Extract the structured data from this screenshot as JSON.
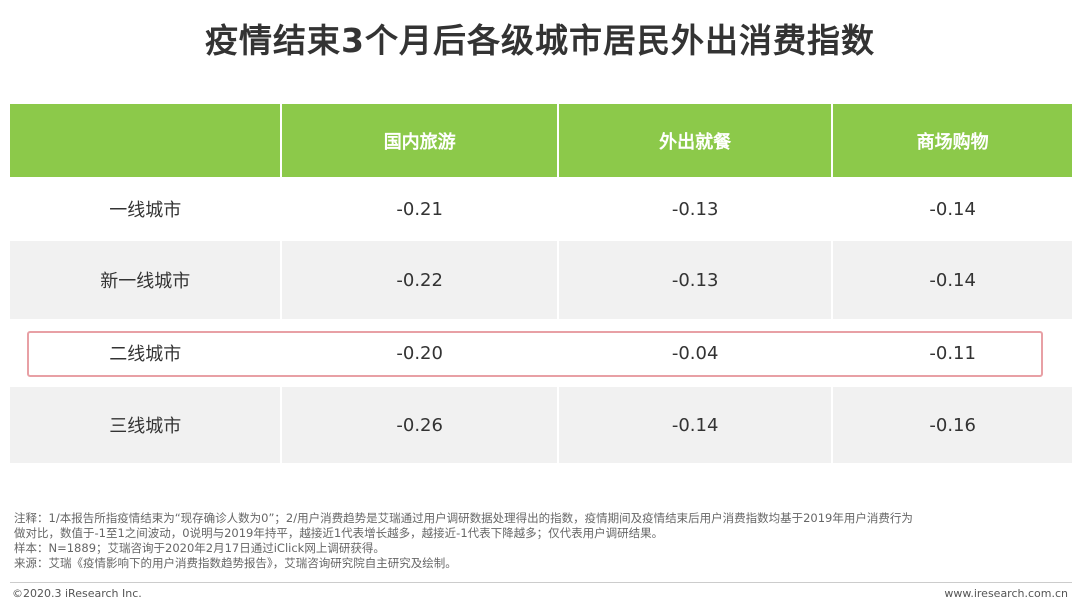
{
  "title": "疫情结束3个月后各级城市居民外出消费指数",
  "table": {
    "columns": [
      "",
      "国内旅游",
      "外出就餐",
      "商场购物"
    ],
    "rows": [
      {
        "label": "一线城市",
        "values": [
          "-0.21",
          "-0.13",
          "-0.14"
        ]
      },
      {
        "label": "新一线城市",
        "values": [
          "-0.22",
          "-0.13",
          "-0.14"
        ]
      },
      {
        "label": "二线城市",
        "values": [
          "-0.20",
          "-0.04",
          "-0.11"
        ],
        "highlighted": true
      },
      {
        "label": "三线城市",
        "values": [
          "-0.26",
          "-0.14",
          "-0.16"
        ]
      }
    ]
  },
  "notes": {
    "line1": "注释：1/本报告所指疫情结束为“现存确诊人数为0”；2/用户消费趋势是艾瑞通过用户调研数据处理得出的指数，疫情期间及疫情结束后用户消费指数均基于2019年用户消费行为",
    "line2": "做对比，数值于-1至1之间波动，0说明与2019年持平，越接近1代表增长越多，越接近-1代表下降越多；仅代表用户调研结果。",
    "line3": "样本：N=1889；艾瑞咨询于2020年2月17日通过iClick网上调研获得。",
    "line4": "来源：艾瑞《疫情影响下的用户消费指数趋势报告》，艾瑞咨询研究院自主研究及绘制。"
  },
  "footer": {
    "copyright": "©2020.3 iResearch Inc.",
    "website": "www.iresearch.com.cn"
  },
  "colors": {
    "header_bg": "#8cc94a",
    "header_text": "#ffffff",
    "row_alt_bg": "#f1f1f1",
    "highlight_border": "#e8a0a5"
  }
}
